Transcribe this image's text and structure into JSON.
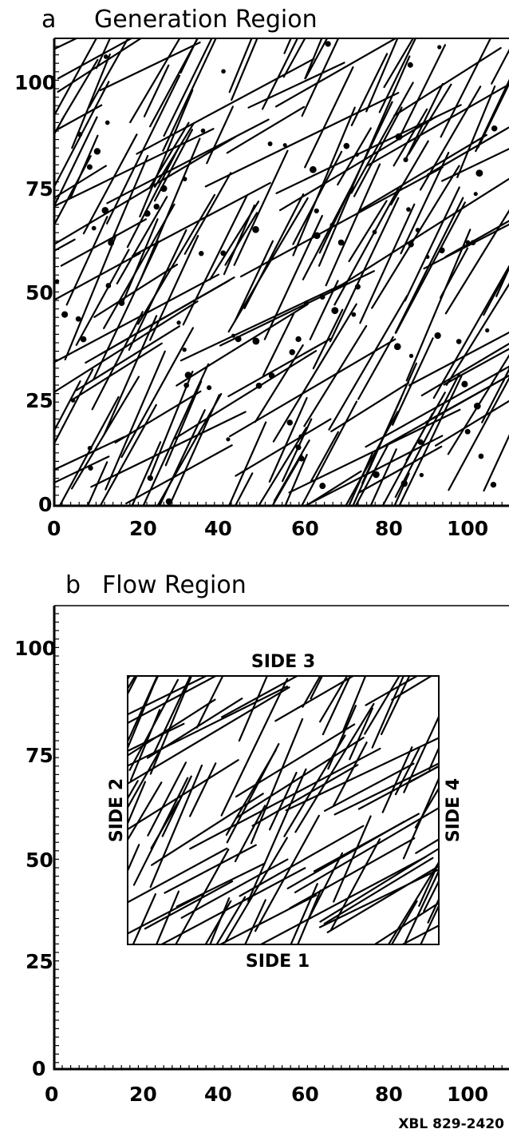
{
  "panels": [
    {
      "letter": "a",
      "title": "Generation Region",
      "x_ticks": [
        "0",
        "20",
        "40",
        "60",
        "80",
        "100"
      ],
      "y_ticks": [
        "0",
        "25",
        "50",
        "75",
        "100"
      ]
    },
    {
      "letter": "b",
      "title": "Flow Region",
      "x_ticks": [
        "0",
        "20",
        "40",
        "60",
        "80",
        "100"
      ],
      "y_ticks": [
        "0",
        "25",
        "50",
        "75",
        "100"
      ],
      "sides": [
        "SIDE 1",
        "SIDE 2",
        "SIDE 3",
        "SIDE 4"
      ]
    }
  ],
  "figure_code": "XBL 829-2420"
}
